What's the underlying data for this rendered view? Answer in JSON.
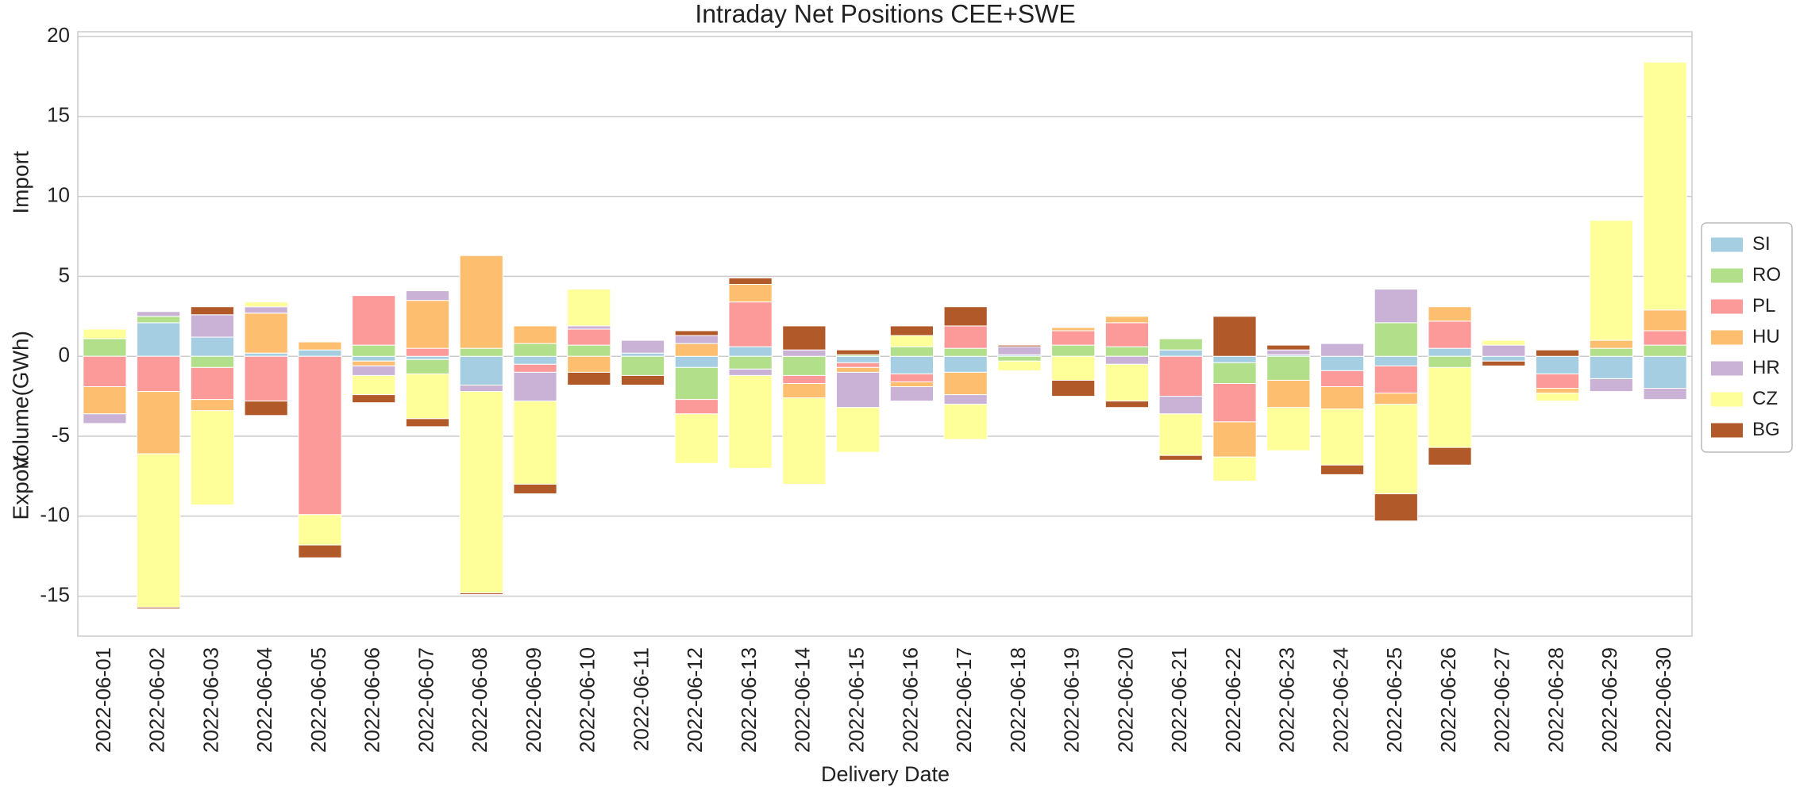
{
  "chart_data": {
    "type": "bar",
    "stacked": true,
    "title": "Intraday Net Positions CEE+SWE",
    "xlabel": "Delivery Date",
    "ylabel": "Volume(GWh)",
    "annotations": [
      "Import",
      "Export"
    ],
    "categories": [
      "2022-06-01",
      "2022-06-02",
      "2022-06-03",
      "2022-06-04",
      "2022-06-05",
      "2022-06-06",
      "2022-06-07",
      "2022-06-08",
      "2022-06-09",
      "2022-06-10",
      "2022-06-11",
      "2022-06-12",
      "2022-06-13",
      "2022-06-14",
      "2022-06-15",
      "2022-06-16",
      "2022-06-17",
      "2022-06-18",
      "2022-06-19",
      "2022-06-20",
      "2022-06-21",
      "2022-06-22",
      "2022-06-23",
      "2022-06-24",
      "2022-06-25",
      "2022-06-26",
      "2022-06-27",
      "2022-06-28",
      "2022-06-29",
      "2022-06-30"
    ],
    "series": [
      {
        "name": "SI",
        "color": "#a6cee3",
        "values": [
          0,
          2.1,
          1.2,
          0.2,
          0.4,
          -0.3,
          -0.2,
          -1.8,
          -0.5,
          0,
          0.2,
          -0.7,
          0.6,
          0,
          -0.4,
          -1.1,
          -1.0,
          0.1,
          0,
          0,
          0.4,
          -0.4,
          0.1,
          -0.9,
          -0.6,
          0.5,
          -0.3,
          -1.1,
          -1.4,
          -2.0
        ]
      },
      {
        "name": "RO",
        "color": "#b2df8a",
        "values": [
          1.1,
          0.4,
          -0.7,
          0,
          0,
          0.7,
          -0.9,
          0.5,
          0.8,
          0.7,
          -1.2,
          -2.0,
          -0.8,
          -1.2,
          0.1,
          0.6,
          0.5,
          -0.3,
          0.7,
          0.6,
          0.7,
          -1.3,
          -1.5,
          0,
          2.1,
          -0.7,
          0,
          0,
          0.5,
          0.7
        ]
      },
      {
        "name": "PL",
        "color": "#fb9a99",
        "values": [
          -1.9,
          -2.2,
          -2.0,
          -2.8,
          -9.9,
          3.1,
          0.5,
          0,
          -0.5,
          1.0,
          0,
          -0.9,
          2.8,
          -0.5,
          -0.3,
          -0.5,
          1.4,
          0,
          0.9,
          1.5,
          -2.5,
          -2.4,
          0,
          -1.0,
          -1.7,
          1.7,
          0,
          -0.9,
          0,
          0.9
        ]
      },
      {
        "name": "HU",
        "color": "#fdbf6f",
        "values": [
          -1.7,
          -3.9,
          -0.7,
          2.5,
          0.5,
          -0.3,
          3.0,
          5.8,
          1.1,
          -1.0,
          0,
          0.8,
          1.1,
          -0.9,
          -0.3,
          -0.3,
          -1.4,
          0,
          0.2,
          0.4,
          0,
          -2.2,
          -1.7,
          -1.4,
          -0.7,
          0.9,
          0,
          -0.3,
          0.5,
          1.3
        ]
      },
      {
        "name": "HR",
        "color": "#cab2d6",
        "values": [
          -0.6,
          0.3,
          1.4,
          0.4,
          0,
          -0.6,
          0.6,
          -0.4,
          -1.8,
          0.2,
          0.8,
          0.5,
          -0.4,
          0.4,
          -2.2,
          -0.9,
          -0.6,
          0.5,
          0,
          -0.5,
          -1.1,
          0,
          0.3,
          0.8,
          2.1,
          0,
          0.7,
          0,
          -0.8,
          -0.7
        ]
      },
      {
        "name": "CZ",
        "color": "#ffff99",
        "values": [
          0.6,
          -9.6,
          -5.9,
          0.3,
          -1.9,
          -1.2,
          -2.8,
          -12.6,
          -5.2,
          2.3,
          0,
          -3.1,
          -5.8,
          -5.4,
          -2.8,
          0.7,
          -2.2,
          -0.6,
          -1.5,
          -2.3,
          -2.6,
          -1.5,
          -2.7,
          -3.5,
          -5.6,
          -5.0,
          0.3,
          -0.5,
          7.5,
          15.5
        ]
      },
      {
        "name": "BG",
        "color": "#b15928",
        "values": [
          0,
          -0.1,
          0.5,
          -0.9,
          -0.8,
          -0.5,
          -0.5,
          -0.1,
          -0.6,
          -0.8,
          -0.6,
          0.3,
          0.4,
          1.5,
          0.3,
          0.6,
          1.2,
          0.1,
          -1.0,
          -0.4,
          -0.3,
          2.5,
          0.3,
          -0.6,
          -1.7,
          -1.1,
          -0.3,
          0.4,
          0,
          0
        ]
      }
    ],
    "ylim": [
      -17.5,
      20.3
    ],
    "yticks": [
      -15,
      -10,
      -5,
      0,
      5,
      10,
      15,
      20
    ],
    "grid": true,
    "legend": "right"
  }
}
